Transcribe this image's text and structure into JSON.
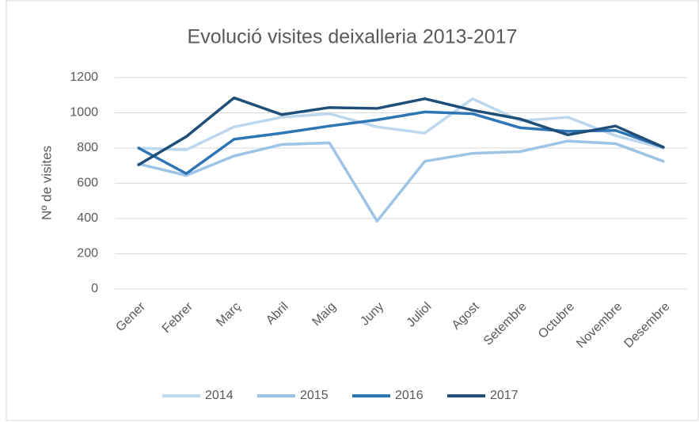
{
  "chart_data": {
    "type": "line",
    "title": "Evolució visites deixalleria 2013-2017",
    "y_label": "Nº de visites",
    "categories": [
      "Gener",
      "Febrer",
      "Març",
      "Abril",
      "Maig",
      "Juny",
      "Juliol",
      "Agost",
      "Setembre",
      "Octubre",
      "Novembre",
      "Desembre"
    ],
    "series": [
      {
        "name": "2014",
        "color": "#bdd7ee",
        "values": [
          800,
          790,
          920,
          975,
          995,
          920,
          885,
          1080,
          955,
          975,
          870,
          800
        ]
      },
      {
        "name": "2015",
        "color": "#9dc3e6",
        "values": [
          710,
          645,
          755,
          820,
          830,
          385,
          725,
          770,
          780,
          840,
          825,
          725
        ]
      },
      {
        "name": "2016",
        "color": "#2e75b6",
        "values": [
          800,
          655,
          850,
          885,
          925,
          960,
          1005,
          995,
          915,
          895,
          900,
          805
        ]
      },
      {
        "name": "2017",
        "color": "#1f4e79",
        "values": [
          705,
          865,
          1085,
          990,
          1030,
          1025,
          1080,
          1015,
          965,
          875,
          925,
          805
        ]
      }
    ],
    "ylim": [
      0,
      1200
    ],
    "yticks": [
      0,
      200,
      400,
      600,
      800,
      1000,
      1200
    ],
    "grid": true,
    "legend": "bottom"
  }
}
